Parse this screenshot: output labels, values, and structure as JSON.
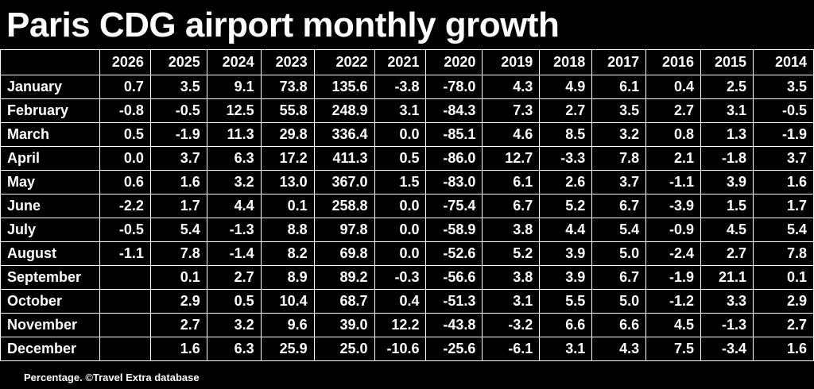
{
  "title": "Paris CDG airport monthly growth",
  "footer": "Percentage. ©Travel Extra database",
  "chart_data": {
    "type": "table",
    "columns": [
      "2026",
      "2025",
      "2024",
      "2023",
      "2022",
      "2021",
      "2020",
      "2019",
      "2018",
      "2017",
      "2016",
      "2015",
      "2014"
    ],
    "rows": [
      {
        "month": "January",
        "values": [
          "0.7",
          "3.5",
          "9.1",
          "73.8",
          "135.6",
          "-3.8",
          "-78.0",
          "4.3",
          "4.9",
          "6.1",
          "0.4",
          "2.5",
          "3.5"
        ]
      },
      {
        "month": "February",
        "values": [
          "-0.8",
          "-0.5",
          "12.5",
          "55.8",
          "248.9",
          "3.1",
          "-84.3",
          "7.3",
          "2.7",
          "3.5",
          "2.7",
          "3.1",
          "-0.5"
        ]
      },
      {
        "month": "March",
        "values": [
          "0.5",
          "-1.9",
          "11.3",
          "29.8",
          "336.4",
          "0.0",
          "-85.1",
          "4.6",
          "8.5",
          "3.2",
          "0.8",
          "1.3",
          "-1.9"
        ]
      },
      {
        "month": "April",
        "values": [
          "0.0",
          "3.7",
          "6.3",
          "17.2",
          "411.3",
          "0.5",
          "-86.0",
          "12.7",
          "-3.3",
          "7.8",
          "2.1",
          "-1.8",
          "3.7"
        ]
      },
      {
        "month": "May",
        "values": [
          "0.6",
          "1.6",
          "3.2",
          "13.0",
          "367.0",
          "1.5",
          "-83.0",
          "6.1",
          "2.6",
          "3.7",
          "-1.1",
          "3.9",
          "1.6"
        ]
      },
      {
        "month": "June",
        "values": [
          "-2.2",
          "1.7",
          "4.4",
          "0.1",
          "258.8",
          "0.0",
          "-75.4",
          "6.7",
          "5.2",
          "6.7",
          "-3.9",
          "1.5",
          "1.7"
        ]
      },
      {
        "month": "July",
        "values": [
          "-0.5",
          "5.4",
          "-1.3",
          "8.8",
          "97.8",
          "0.0",
          "-58.9",
          "3.8",
          "4.4",
          "5.4",
          "-0.9",
          "4.5",
          "5.4"
        ]
      },
      {
        "month": "August",
        "values": [
          "-1.1",
          "7.8",
          "-1.4",
          "8.2",
          "69.8",
          "0.0",
          "-52.6",
          "5.2",
          "3.9",
          "5.0",
          "-2.4",
          "2.7",
          "7.8"
        ]
      },
      {
        "month": "September",
        "values": [
          "",
          "0.1",
          "2.7",
          "8.9",
          "89.2",
          "-0.3",
          "-56.6",
          "3.8",
          "3.9",
          "6.7",
          "-1.9",
          "21.1",
          "0.1"
        ]
      },
      {
        "month": "October",
        "values": [
          "",
          "2.9",
          "0.5",
          "10.4",
          "68.7",
          "0.4",
          "-51.3",
          "3.1",
          "5.5",
          "5.0",
          "-1.2",
          "3.3",
          "2.9"
        ]
      },
      {
        "month": "November",
        "values": [
          "",
          "2.7",
          "3.2",
          "9.6",
          "39.0",
          "12.2",
          "-43.8",
          "-3.2",
          "6.6",
          "6.6",
          "4.5",
          "-1.3",
          "2.7"
        ]
      },
      {
        "month": "December",
        "values": [
          "",
          "1.6",
          "6.3",
          "25.9",
          "25.0",
          "-10.6",
          "-25.6",
          "-6.1",
          "3.1",
          "4.3",
          "7.5",
          "-3.4",
          "1.6"
        ]
      }
    ]
  }
}
